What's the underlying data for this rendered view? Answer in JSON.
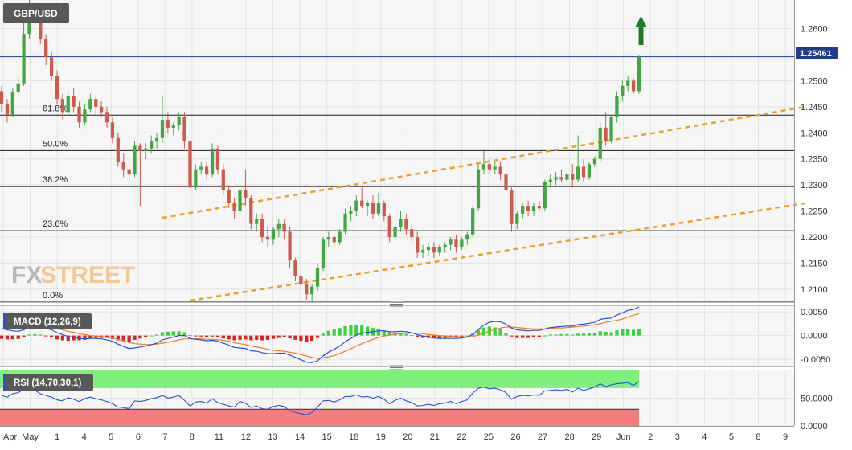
{
  "symbol": "GBP/USD",
  "watermark": {
    "fx": "FX",
    "street": "STREET"
  },
  "last_price_label": "1.25461",
  "colors": {
    "up": "#41a841",
    "down": "#cf5a4a",
    "fib": "#1a1a1a",
    "channel": "#f0a020",
    "price_line": "#1f3a93",
    "macd_line": "#2a52d6",
    "signal_line": "#f07d20",
    "hist_up": "#3ad23a",
    "hist_down": "#e02020",
    "rsi_line": "#2a52d6",
    "rsi_overbought": "#7ef07e",
    "rsi_oversold": "#f47d7d",
    "arrow": "#1e7d1e"
  },
  "x_axis_labels": [
    "Apr",
    "May",
    "1",
    "4",
    "5",
    "6",
    "7",
    "8",
    "11",
    "12",
    "13",
    "14",
    "15",
    "18",
    "19",
    "20",
    "21",
    "22",
    "25",
    "26",
    "27",
    "28",
    "29",
    "Jun",
    "2",
    "3",
    "4",
    "5",
    "8",
    "9"
  ],
  "chart_data": [
    {
      "type": "candlestick",
      "title": "GBP/USD",
      "y_ticks": [
        "1.2600",
        "1.2550",
        "1.2500",
        "1.2450",
        "1.2400",
        "1.2350",
        "1.2300",
        "1.2250",
        "1.2200",
        "1.2150",
        "1.2100"
      ],
      "ylim": [
        1.2075,
        1.2655
      ],
      "current_price": 1.25461,
      "fibonacci_levels": [
        {
          "label": "61.8%",
          "value": 1.2434
        },
        {
          "label": "50.0%",
          "value": 1.2366
        },
        {
          "label": "38.2%",
          "value": 1.2297
        },
        {
          "label": "23.6%",
          "value": 1.2212
        },
        {
          "label": "0.0%",
          "value": 1.2075
        }
      ],
      "channel_upper": [
        {
          "x": 29,
          "y": 1.2237
        },
        {
          "x": 145,
          "y": 1.245
        }
      ],
      "channel_lower": [
        {
          "x": 34,
          "y": 1.2078
        },
        {
          "x": 145,
          "y": 1.2265
        }
      ],
      "candles": [
        [
          1.248,
          1.249,
          1.244,
          1.2455
        ],
        [
          1.2455,
          1.2465,
          1.242,
          1.2435
        ],
        [
          1.2435,
          1.2485,
          1.243,
          1.2478
        ],
        [
          1.2478,
          1.251,
          1.247,
          1.2495
        ],
        [
          1.2495,
          1.262,
          1.249,
          1.259
        ],
        [
          1.259,
          1.2655,
          1.258,
          1.264
        ],
        [
          1.264,
          1.265,
          1.26,
          1.2615
        ],
        [
          1.2615,
          1.2625,
          1.257,
          1.258
        ],
        [
          1.258,
          1.259,
          1.253,
          1.2545
        ],
        [
          1.2545,
          1.2555,
          1.25,
          1.251
        ],
        [
          1.251,
          1.252,
          1.2455,
          1.2465
        ],
        [
          1.2465,
          1.2475,
          1.2425,
          1.244
        ],
        [
          1.244,
          1.248,
          1.2435,
          1.247
        ],
        [
          1.247,
          1.2485,
          1.244,
          1.245
        ],
        [
          1.245,
          1.246,
          1.241,
          1.242
        ],
        [
          1.242,
          1.2455,
          1.2415,
          1.2445
        ],
        [
          1.2445,
          1.2475,
          1.244,
          1.2465
        ],
        [
          1.2465,
          1.247,
          1.2435,
          1.245
        ],
        [
          1.245,
          1.246,
          1.243,
          1.244
        ],
        [
          1.244,
          1.245,
          1.241,
          1.242
        ],
        [
          1.242,
          1.243,
          1.238,
          1.239
        ],
        [
          1.239,
          1.24,
          1.2335,
          1.2345
        ],
        [
          1.2345,
          1.236,
          1.2315,
          1.233
        ],
        [
          1.233,
          1.234,
          1.2305,
          1.232
        ],
        [
          1.232,
          1.2385,
          1.2315,
          1.2375
        ],
        [
          1.2375,
          1.238,
          1.226,
          1.2365
        ],
        [
          1.2365,
          1.238,
          1.235,
          1.237
        ],
        [
          1.237,
          1.2395,
          1.236,
          1.2385
        ],
        [
          1.2385,
          1.24,
          1.237,
          1.239
        ],
        [
          1.239,
          1.247,
          1.238,
          1.2425
        ],
        [
          1.2425,
          1.244,
          1.24,
          1.241
        ],
        [
          1.241,
          1.242,
          1.2395,
          1.2415
        ],
        [
          1.2415,
          1.244,
          1.2405,
          1.243
        ],
        [
          1.243,
          1.244,
          1.237,
          1.2385
        ],
        [
          1.2385,
          1.239,
          1.2285,
          1.2295
        ],
        [
          1.2295,
          1.234,
          1.229,
          1.233
        ],
        [
          1.233,
          1.2345,
          1.232,
          1.2335
        ],
        [
          1.2335,
          1.2345,
          1.231,
          1.232
        ],
        [
          1.232,
          1.238,
          1.2315,
          1.237
        ],
        [
          1.237,
          1.2375,
          1.232,
          1.233
        ],
        [
          1.233,
          1.234,
          1.228,
          1.229
        ],
        [
          1.229,
          1.23,
          1.2255,
          1.2265
        ],
        [
          1.2265,
          1.2275,
          1.2235,
          1.225
        ],
        [
          1.225,
          1.23,
          1.2245,
          1.229
        ],
        [
          1.229,
          1.233,
          1.226,
          1.2275
        ],
        [
          1.2275,
          1.228,
          1.2215,
          1.2225
        ],
        [
          1.2225,
          1.2245,
          1.221,
          1.2235
        ],
        [
          1.2235,
          1.2245,
          1.219,
          1.22
        ],
        [
          1.22,
          1.222,
          1.218,
          1.2195
        ],
        [
          1.2195,
          1.222,
          1.2185,
          1.2215
        ],
        [
          1.2215,
          1.2235,
          1.22,
          1.2225
        ],
        [
          1.2225,
          1.2235,
          1.2195,
          1.221
        ],
        [
          1.221,
          1.222,
          1.214,
          1.2155
        ],
        [
          1.2155,
          1.216,
          1.2115,
          1.2125
        ],
        [
          1.2125,
          1.213,
          1.21,
          1.211
        ],
        [
          1.211,
          1.212,
          1.208,
          1.209
        ],
        [
          1.209,
          1.211,
          1.2075,
          1.2105
        ],
        [
          1.2105,
          1.215,
          1.2095,
          1.214
        ],
        [
          1.214,
          1.22,
          1.2135,
          1.2195
        ],
        [
          1.2195,
          1.221,
          1.218,
          1.22
        ],
        [
          1.22,
          1.2205,
          1.218,
          1.219
        ],
        [
          1.219,
          1.2215,
          1.2185,
          1.221
        ],
        [
          1.221,
          1.2255,
          1.2205,
          1.2245
        ],
        [
          1.2245,
          1.226,
          1.223,
          1.225
        ],
        [
          1.225,
          1.228,
          1.224,
          1.227
        ],
        [
          1.227,
          1.2295,
          1.2255,
          1.226
        ],
        [
          1.226,
          1.227,
          1.224,
          1.2265
        ],
        [
          1.2265,
          1.228,
          1.2235,
          1.2245
        ],
        [
          1.2245,
          1.2285,
          1.224,
          1.2265
        ],
        [
          1.2265,
          1.227,
          1.223,
          1.224
        ],
        [
          1.224,
          1.2245,
          1.219,
          1.22
        ],
        [
          1.22,
          1.2225,
          1.219,
          1.222
        ],
        [
          1.222,
          1.225,
          1.221,
          1.2235
        ],
        [
          1.2235,
          1.2245,
          1.2205,
          1.2215
        ],
        [
          1.2215,
          1.2225,
          1.219,
          1.22
        ],
        [
          1.22,
          1.221,
          1.216,
          1.217
        ],
        [
          1.217,
          1.2185,
          1.216,
          1.2175
        ],
        [
          1.2175,
          1.219,
          1.2165,
          1.218
        ],
        [
          1.218,
          1.219,
          1.216,
          1.217
        ],
        [
          1.217,
          1.2185,
          1.2165,
          1.218
        ],
        [
          1.218,
          1.219,
          1.217,
          1.2185
        ],
        [
          1.2185,
          1.22,
          1.2175,
          1.2195
        ],
        [
          1.2195,
          1.2205,
          1.217,
          1.218
        ],
        [
          1.218,
          1.22,
          1.2175,
          1.2195
        ],
        [
          1.2195,
          1.221,
          1.2185,
          1.2205
        ],
        [
          1.2205,
          1.226,
          1.22,
          1.2255
        ],
        [
          1.2255,
          1.234,
          1.225,
          1.233
        ],
        [
          1.233,
          1.2365,
          1.232,
          1.234
        ],
        [
          1.234,
          1.235,
          1.232,
          1.233
        ],
        [
          1.233,
          1.2345,
          1.232,
          1.2335
        ],
        [
          1.2335,
          1.2345,
          1.231,
          1.232
        ],
        [
          1.232,
          1.233,
          1.228,
          1.229
        ],
        [
          1.229,
          1.2295,
          1.221,
          1.2225
        ],
        [
          1.2225,
          1.225,
          1.2215,
          1.2245
        ],
        [
          1.2245,
          1.2265,
          1.2235,
          1.226
        ],
        [
          1.226,
          1.227,
          1.224,
          1.225
        ],
        [
          1.225,
          1.2265,
          1.224,
          1.226
        ],
        [
          1.226,
          1.227,
          1.225,
          1.2255
        ],
        [
          1.2255,
          1.231,
          1.225,
          1.2305
        ],
        [
          1.2305,
          1.232,
          1.2295,
          1.231
        ],
        [
          1.231,
          1.2325,
          1.23,
          1.2315
        ],
        [
          1.2315,
          1.233,
          1.2305,
          1.231
        ],
        [
          1.231,
          1.2325,
          1.2305,
          1.232
        ],
        [
          1.232,
          1.234,
          1.2295,
          1.231
        ],
        [
          1.231,
          1.2395,
          1.2305,
          1.2335
        ],
        [
          1.2335,
          1.235,
          1.2305,
          1.2315
        ],
        [
          1.2315,
          1.2345,
          1.231,
          1.234
        ],
        [
          1.234,
          1.2355,
          1.2335,
          1.235
        ],
        [
          1.235,
          1.242,
          1.2345,
          1.241
        ],
        [
          1.241,
          1.244,
          1.2375,
          1.2385
        ],
        [
          1.2385,
          1.2435,
          1.238,
          1.243
        ],
        [
          1.243,
          1.248,
          1.242,
          1.247
        ],
        [
          1.247,
          1.25,
          1.246,
          1.249
        ],
        [
          1.249,
          1.251,
          1.248,
          1.25
        ],
        [
          1.25,
          1.2505,
          1.2475,
          1.248
        ],
        [
          1.248,
          1.255,
          1.2475,
          1.2546
        ]
      ]
    },
    {
      "type": "line",
      "title": "MACD (12,26,9)",
      "y_ticks": [
        "0.0050",
        "0.0000",
        "-0.0050"
      ],
      "ylim": [
        -0.0065,
        0.0062
      ],
      "series": [
        {
          "name": "MACD",
          "values": [
            0.0015,
            0.0012,
            0.001,
            0.0009,
            0.0012,
            0.0018,
            0.002,
            0.0019,
            0.0016,
            0.0012,
            0.0006,
            0.0002,
            -0.0002,
            -0.0003,
            -0.0006,
            -0.0007,
            -0.0006,
            -0.0006,
            -0.0007,
            -0.0009,
            -0.0012,
            -0.0018,
            -0.0023,
            -0.0027,
            -0.0026,
            -0.0024,
            -0.0022,
            -0.0019,
            -0.0016,
            -0.0009,
            -0.0006,
            -0.0003,
            0.0,
            0.0,
            -0.0006,
            -0.0008,
            -0.0009,
            -0.0011,
            -0.001,
            -0.0012,
            -0.0016,
            -0.002,
            -0.0025,
            -0.0026,
            -0.0027,
            -0.0032,
            -0.0033,
            -0.0036,
            -0.0038,
            -0.0038,
            -0.0037,
            -0.0037,
            -0.0041,
            -0.0046,
            -0.0051,
            -0.0056,
            -0.0057,
            -0.0053,
            -0.0043,
            -0.0035,
            -0.0029,
            -0.0022,
            -0.0013,
            -0.0006,
            0.0001,
            0.0005,
            0.0007,
            0.0008,
            0.001,
            0.001,
            0.0008,
            0.0008,
            0.0009,
            0.0008,
            0.0006,
            0.0002,
            -0.0001,
            -0.0003,
            -0.0005,
            -0.0006,
            -0.0006,
            -0.0006,
            -0.0006,
            -0.0005,
            -0.0003,
            0.0002,
            0.0013,
            0.0022,
            0.0028,
            0.003,
            0.0029,
            0.0024,
            0.0016,
            0.0012,
            0.0011,
            0.001,
            0.0011,
            0.0011,
            0.0014,
            0.0017,
            0.0018,
            0.0019,
            0.002,
            0.002,
            0.0023,
            0.0024,
            0.0026,
            0.0028,
            0.0034,
            0.0036,
            0.0037,
            0.0043,
            0.0048,
            0.0053,
            0.0055,
            0.006
          ]
        },
        {
          "name": "Signal",
          "values": [
            0.0022,
            0.002,
            0.0018,
            0.0016,
            0.0016,
            0.0016,
            0.0017,
            0.0017,
            0.0017,
            0.0016,
            0.0014,
            0.0012,
            0.0009,
            0.0007,
            0.0004,
            0.0002,
            0.0,
            -0.0001,
            -0.0002,
            -0.0004,
            -0.0005,
            -0.0008,
            -0.0011,
            -0.0014,
            -0.0017,
            -0.0018,
            -0.0019,
            -0.0019,
            -0.0018,
            -0.0016,
            -0.0014,
            -0.0012,
            -0.0009,
            -0.0007,
            -0.0007,
            -0.0007,
            -0.0007,
            -0.0008,
            -0.0008,
            -0.0009,
            -0.001,
            -0.0012,
            -0.0015,
            -0.0017,
            -0.0019,
            -0.0022,
            -0.0024,
            -0.0026,
            -0.0029,
            -0.0031,
            -0.0032,
            -0.0033,
            -0.0035,
            -0.0037,
            -0.004,
            -0.0043,
            -0.0046,
            -0.0048,
            -0.0047,
            -0.0045,
            -0.0042,
            -0.0038,
            -0.0033,
            -0.0028,
            -0.0022,
            -0.0017,
            -0.0012,
            -0.0008,
            -0.0004,
            -0.0001,
            0.0001,
            0.0003,
            0.0004,
            0.0005,
            0.0005,
            0.0005,
            0.0004,
            0.0002,
            0.0001,
            -0.0,
            -0.0001,
            -0.0002,
            -0.0003,
            -0.0003,
            -0.0003,
            -0.0002,
            0.0001,
            0.0005,
            0.0009,
            0.0013,
            0.0016,
            0.0018,
            0.0018,
            0.0017,
            0.0016,
            0.0015,
            0.0014,
            0.0014,
            0.0014,
            0.0015,
            0.0016,
            0.0016,
            0.0017,
            0.0018,
            0.0019,
            0.002,
            0.0021,
            0.0023,
            0.0025,
            0.0028,
            0.003,
            0.0032,
            0.0035,
            0.0039,
            0.0043,
            0.0046
          ]
        }
      ]
    },
    {
      "type": "line",
      "title": "RSI (14,70,30,1)",
      "y_ticks": [
        "50.0000",
        "0.0000"
      ],
      "ylim": [
        0,
        100
      ],
      "overbought": 70,
      "oversold": 30,
      "series": [
        {
          "name": "RSI",
          "values": [
            55,
            52,
            58,
            60,
            66,
            70,
            64,
            58,
            55,
            52,
            47,
            45,
            51,
            48,
            44,
            49,
            52,
            49,
            47,
            44,
            40,
            34,
            33,
            31,
            45,
            44,
            46,
            49,
            51,
            55,
            50,
            52,
            55,
            46,
            36,
            43,
            44,
            41,
            49,
            42,
            39,
            36,
            34,
            44,
            41,
            33,
            36,
            31,
            30,
            35,
            37,
            35,
            27,
            24,
            22,
            20,
            24,
            34,
            45,
            46,
            43,
            47,
            53,
            53,
            56,
            52,
            53,
            50,
            53,
            48,
            40,
            46,
            50,
            45,
            42,
            36,
            37,
            39,
            37,
            40,
            41,
            44,
            40,
            44,
            47,
            59,
            68,
            70,
            67,
            68,
            65,
            60,
            48,
            53,
            55,
            54,
            56,
            55,
            63,
            64,
            65,
            64,
            66,
            61,
            68,
            64,
            67,
            70,
            76,
            71,
            74,
            76,
            77,
            78,
            73,
            80
          ]
        }
      ]
    }
  ]
}
